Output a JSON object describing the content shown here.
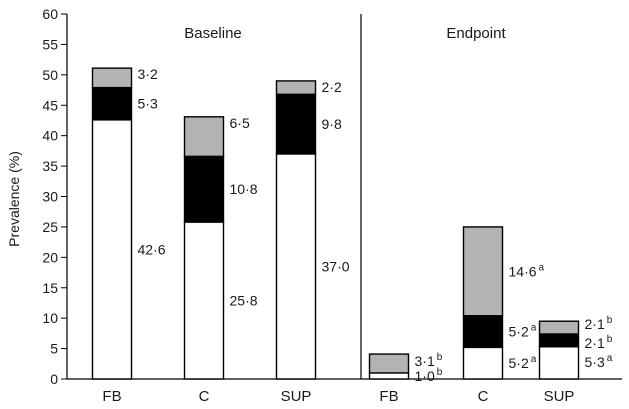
{
  "chart_data": {
    "type": "bar",
    "stacked": true,
    "ylabel": "Prevalence (%)",
    "ylim": [
      0,
      60
    ],
    "yticks": [
      0,
      5,
      10,
      15,
      20,
      25,
      30,
      35,
      40,
      45,
      50,
      55,
      60
    ],
    "series_colors": {
      "bottom": "#ffffff",
      "middle": "#000000",
      "top": "#b3b3b3"
    },
    "panels": [
      {
        "title": "Baseline",
        "groups": [
          {
            "category": "FB",
            "segments": [
              {
                "value": 42.6,
                "label": "42·6",
                "sup": ""
              },
              {
                "value": 5.3,
                "label": "5·3",
                "sup": ""
              },
              {
                "value": 3.2,
                "label": "3·2",
                "sup": ""
              }
            ]
          },
          {
            "category": "C",
            "segments": [
              {
                "value": 25.8,
                "label": "25·8",
                "sup": ""
              },
              {
                "value": 10.8,
                "label": "10·8",
                "sup": ""
              },
              {
                "value": 6.5,
                "label": "6·5",
                "sup": ""
              }
            ]
          },
          {
            "category": "SUP",
            "segments": [
              {
                "value": 37.0,
                "label": "37·0",
                "sup": ""
              },
              {
                "value": 9.8,
                "label": "9·8",
                "sup": ""
              },
              {
                "value": 2.2,
                "label": "2·2",
                "sup": ""
              }
            ]
          }
        ]
      },
      {
        "title": "Endpoint",
        "groups": [
          {
            "category": "FB",
            "segments": [
              {
                "value": 1.0,
                "label": "1·0",
                "sup": "b"
              },
              {
                "value": 0.0,
                "label": "",
                "sup": ""
              },
              {
                "value": 3.1,
                "label": "3·1",
                "sup": "b"
              }
            ]
          },
          {
            "category": "C",
            "segments": [
              {
                "value": 5.2,
                "label": "5·2",
                "sup": "a"
              },
              {
                "value": 5.2,
                "label": "5·2",
                "sup": "a"
              },
              {
                "value": 14.6,
                "label": "14·6",
                "sup": "a"
              }
            ]
          },
          {
            "category": "SUP",
            "segments": [
              {
                "value": 5.3,
                "label": "5·3",
                "sup": "a"
              },
              {
                "value": 2.1,
                "label": "2·1",
                "sup": "b"
              },
              {
                "value": 2.1,
                "label": "2·1",
                "sup": "b"
              }
            ]
          }
        ]
      }
    ]
  }
}
